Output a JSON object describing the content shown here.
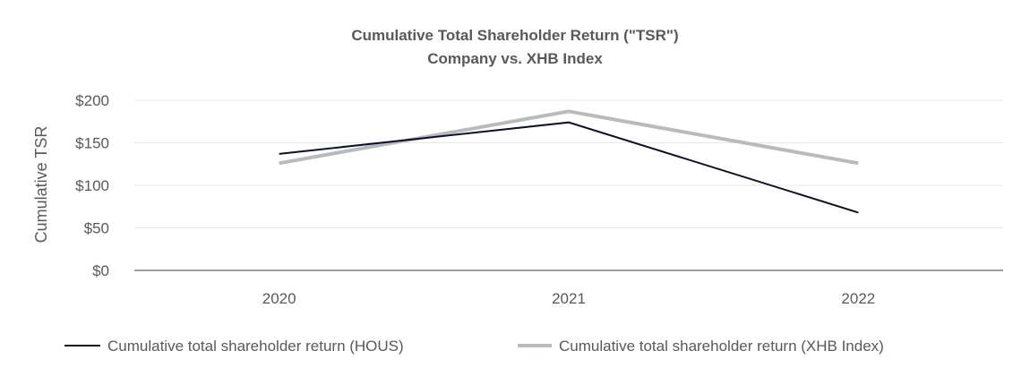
{
  "chart_data": {
    "type": "line",
    "title": "Cumulative Total Shareholder Return (\"TSR\")",
    "subtitle": "Company vs. XHB Index",
    "xlabel": "",
    "ylabel": "Cumulative TSR",
    "categories": [
      "2020",
      "2021",
      "2022"
    ],
    "ylim": [
      0,
      200
    ],
    "yticks": [
      0,
      50,
      100,
      150,
      200
    ],
    "ytick_labels": [
      "$0",
      "$50",
      "$100",
      "$150",
      "$200"
    ],
    "grid": true,
    "legend_position": "bottom",
    "series": [
      {
        "name": "Cumulative total shareholder return (HOUS)",
        "values": [
          137,
          174,
          68
        ],
        "color": "#0f0f2d"
      },
      {
        "name": "Cumulative total shareholder return (XHB Index)",
        "values": [
          126,
          187,
          126
        ],
        "color": "#b6bbbe"
      }
    ]
  }
}
